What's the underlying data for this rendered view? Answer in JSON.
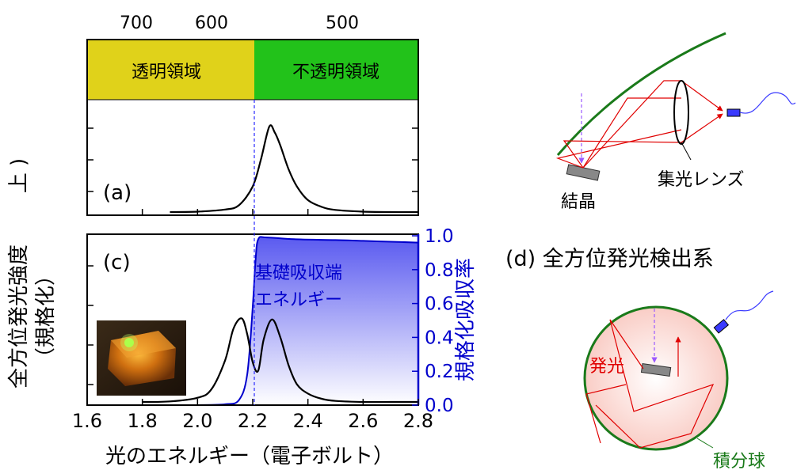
{
  "top_axis": {
    "ticks": [
      "700",
      "600",
      "500"
    ]
  },
  "regions": {
    "transparent_label": "透明領域",
    "opaque_label": "不透明領域",
    "transparent_color": "#e0d21a",
    "opaque_color": "#22c21a"
  },
  "panel_a": {
    "label": "(a)",
    "ylabel_partial": "上 )"
  },
  "panel_c": {
    "label": "(c)",
    "annotation_line1": "基礎吸収端",
    "annotation_line2": "エネルギー",
    "photo_icon": "crystal-photo"
  },
  "left_ylabel": {
    "line1": "全方位発光強度",
    "line2": "（規格化）"
  },
  "right_ylabel": "規格化吸収率",
  "xaxis": {
    "label": "光のエネルギー（電子ボルト）"
  },
  "panel_d": {
    "title": "(d) 全方位発光検出系",
    "lens_label": "集光レンズ",
    "crystal_label": "結晶",
    "emission_label": "発光",
    "sphere_label": "積分球"
  },
  "colors": {
    "absorption": "#0000cc",
    "emission_ray": "#e00000",
    "mirror": "#1a7a1a",
    "curve": "#000000",
    "sphere_fill": "#fbd6d0"
  },
  "chart_data": {
    "type": "line",
    "x_unit": "eV",
    "xlim": [
      1.6,
      2.8
    ],
    "x_ticks": [
      "1.6",
      "1.8",
      "2.0",
      "2.2",
      "2.4",
      "2.6",
      "2.8"
    ],
    "top_ticks_nm": [
      700,
      600,
      500
    ],
    "absorption_edge_eV": 2.21,
    "right_ylim": [
      0.0,
      1.0
    ],
    "right_ticks": [
      "0.0",
      "0.2",
      "0.4",
      "0.6",
      "0.8",
      "1.0"
    ],
    "series": [
      {
        "panel": "a",
        "x": [
          1.9,
          2.0,
          2.1,
          2.15,
          2.2,
          2.23,
          2.26,
          2.28,
          2.3,
          2.33,
          2.36,
          2.4,
          2.45,
          2.5,
          2.6,
          2.7,
          2.8
        ],
        "y": [
          0.0,
          0.005,
          0.03,
          0.08,
          0.3,
          0.62,
          1.0,
          0.93,
          0.78,
          0.5,
          0.3,
          0.14,
          0.06,
          0.025,
          0.005,
          0.0,
          0.0
        ]
      },
      {
        "panel": "c",
        "x": [
          1.8,
          1.9,
          2.0,
          2.05,
          2.1,
          2.13,
          2.16,
          2.18,
          2.2,
          2.22,
          2.24,
          2.27,
          2.3,
          2.33,
          2.36,
          2.4,
          2.45,
          2.5,
          2.6,
          2.7,
          2.8
        ],
        "y": [
          0.0,
          0.005,
          0.04,
          0.12,
          0.4,
          0.7,
          0.8,
          0.65,
          0.38,
          0.3,
          0.6,
          0.79,
          0.62,
          0.35,
          0.17,
          0.08,
          0.03,
          0.01,
          0.0,
          0.0,
          0.0
        ]
      },
      {
        "panel": "c-absorption",
        "x": [
          2.0,
          2.1,
          2.15,
          2.18,
          2.2,
          2.21,
          2.22,
          2.25,
          2.35,
          2.5,
          2.6,
          2.7,
          2.8
        ],
        "y": [
          0.0,
          0.005,
          0.03,
          0.18,
          0.58,
          0.85,
          0.98,
          0.99,
          0.98,
          0.975,
          0.97,
          0.965,
          0.96
        ]
      }
    ]
  }
}
